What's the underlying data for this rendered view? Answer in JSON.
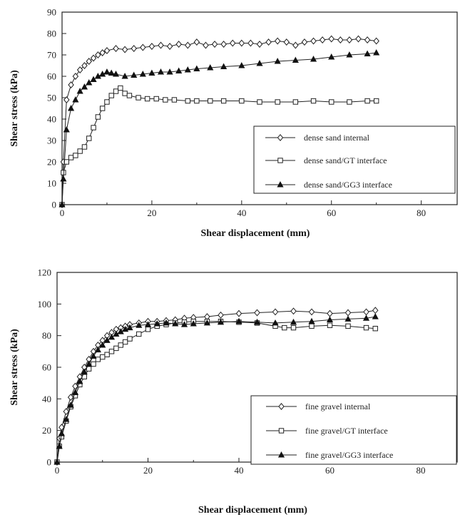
{
  "chart_data": [
    {
      "type": "line",
      "xlabel": "Shear displacement (mm)",
      "ylabel": "Shear stress (kPa)",
      "xlim": [
        0,
        88
      ],
      "ylim": [
        0,
        90
      ],
      "xticks": [
        "0",
        "20",
        "40",
        "60",
        "80"
      ],
      "yticks": [
        "0",
        "10",
        "20",
        "30",
        "40",
        "50",
        "60",
        "70",
        "80",
        "90"
      ],
      "legend_position": "bottom-right",
      "grid": false,
      "series": [
        {
          "name": "dense sand internal",
          "marker": "diamond-open",
          "x": [
            0,
            0.3,
            1,
            2,
            3,
            4,
            5,
            6,
            7,
            8,
            9,
            10,
            12,
            14,
            16,
            18,
            20,
            22,
            24,
            26,
            28,
            30,
            32,
            34,
            36,
            38,
            40,
            42,
            44,
            46,
            48,
            50,
            52,
            54,
            56,
            58,
            60,
            62,
            64,
            66,
            68,
            70
          ],
          "y": [
            0,
            20,
            49,
            56,
            60,
            63,
            65,
            67,
            68.5,
            70,
            71,
            72,
            73,
            72.5,
            73,
            73.5,
            74,
            74.5,
            74,
            75,
            74.5,
            76,
            74.5,
            75,
            75,
            75.5,
            75.5,
            75.5,
            75,
            76,
            76.5,
            76,
            74.5,
            76,
            76.5,
            77,
            77.5,
            77,
            77,
            77.5,
            77,
            76.5
          ]
        },
        {
          "name": "dense sand/GT interface",
          "marker": "square-open",
          "x": [
            0,
            0.3,
            1,
            2,
            3,
            4,
            5,
            6,
            7,
            8,
            9,
            10,
            11,
            12,
            13,
            14,
            15,
            17,
            19,
            21,
            23,
            25,
            28,
            30,
            33,
            36,
            40,
            44,
            48,
            52,
            56,
            60,
            64,
            68,
            70
          ],
          "y": [
            0,
            15,
            20,
            22,
            23,
            25,
            27,
            31,
            36,
            41,
            45,
            48,
            51,
            53,
            54.5,
            52,
            51,
            50,
            49.5,
            49.5,
            49,
            49,
            48.5,
            48.5,
            48.5,
            48.5,
            48.5,
            48,
            48,
            48,
            48.5,
            48,
            48,
            48.5,
            48.5
          ]
        },
        {
          "name": "dense sand/GG3 interface",
          "marker": "triangle-filled",
          "x": [
            0,
            0.3,
            1,
            2,
            3,
            4,
            5,
            6,
            7,
            8,
            9,
            10,
            11,
            12,
            14,
            16,
            18,
            20,
            22,
            24,
            26,
            28,
            30,
            33,
            36,
            40,
            44,
            48,
            52,
            56,
            60,
            64,
            68,
            70
          ],
          "y": [
            0,
            12,
            35,
            45,
            49,
            53,
            55,
            57,
            58.5,
            60,
            61,
            62,
            61.5,
            61,
            60,
            60.5,
            61,
            61.5,
            62,
            62,
            62.5,
            63,
            63.5,
            64,
            64.5,
            65,
            66,
            67,
            67.5,
            68,
            69,
            70,
            70.5,
            71
          ]
        }
      ],
      "legend": [
        "dense sand internal",
        "dense sand/GT interface",
        "dense sand/GG3 interface"
      ]
    },
    {
      "type": "line",
      "xlabel": "Shear displacement (mm)",
      "ylabel": "Shear stress (kPa)",
      "xlim": [
        0,
        88
      ],
      "ylim": [
        0,
        120
      ],
      "xticks": [
        "0",
        "20",
        "40",
        "60",
        "80"
      ],
      "yticks": [
        "0",
        "20",
        "40",
        "60",
        "80",
        "100",
        "120"
      ],
      "legend_position": "bottom-right",
      "grid": false,
      "series": [
        {
          "name": "fine gravel internal",
          "marker": "diamond-open",
          "x": [
            0,
            0.5,
            1,
            2,
            3,
            4,
            5,
            6,
            7,
            8,
            9,
            10,
            11,
            12,
            13,
            14,
            15,
            16,
            18,
            20,
            22,
            24,
            26,
            28,
            30,
            33,
            36,
            40,
            44,
            48,
            52,
            56,
            60,
            64,
            68,
            70
          ],
          "y": [
            0,
            15,
            22,
            32,
            41,
            48,
            54,
            60,
            65,
            70,
            74,
            77,
            80,
            82,
            84,
            85,
            86,
            87,
            88,
            89,
            89,
            89.5,
            90,
            91,
            91.5,
            92,
            93,
            94,
            94.5,
            95,
            95.5,
            95,
            94,
            94.5,
            95,
            96
          ]
        },
        {
          "name": "fine gravel/GT interface",
          "marker": "square-open",
          "x": [
            0,
            0.5,
            1,
            2,
            3,
            4,
            5,
            6,
            7,
            8,
            9,
            10,
            11,
            12,
            13,
            14,
            15,
            16,
            18,
            20,
            22,
            24,
            26,
            28,
            30,
            33,
            36,
            40,
            44,
            48,
            50,
            52,
            56,
            60,
            64,
            68,
            70
          ],
          "y": [
            0,
            10,
            16,
            26,
            35,
            42,
            49,
            54,
            59,
            62,
            65,
            66.5,
            68,
            70,
            72,
            74,
            76,
            78,
            81,
            84,
            86,
            87,
            88,
            88.5,
            89,
            89,
            89,
            88.5,
            88,
            86,
            85,
            85,
            86,
            86.5,
            86,
            85,
            84.5
          ]
        },
        {
          "name": "fine gravel/GG3 interface",
          "marker": "triangle-filled",
          "x": [
            0,
            0.5,
            1,
            2,
            3,
            4,
            5,
            6,
            7,
            8,
            9,
            10,
            11,
            12,
            13,
            14,
            15,
            16,
            18,
            20,
            22,
            24,
            26,
            28,
            30,
            33,
            36,
            40,
            44,
            48,
            52,
            56,
            60,
            64,
            68,
            70
          ],
          "y": [
            0,
            10,
            18,
            27,
            36,
            44,
            51,
            57,
            62,
            67,
            71,
            74,
            77,
            79,
            81,
            82.5,
            84,
            85,
            86.5,
            87,
            87.5,
            88,
            87.5,
            87,
            87.5,
            88,
            88.5,
            89,
            88.5,
            88,
            88.5,
            89,
            90,
            90.5,
            91,
            92
          ]
        }
      ],
      "legend": [
        "fine gravel internal",
        "fine gravel/GT interface",
        "fine gravel/GG3 interface"
      ]
    }
  ]
}
